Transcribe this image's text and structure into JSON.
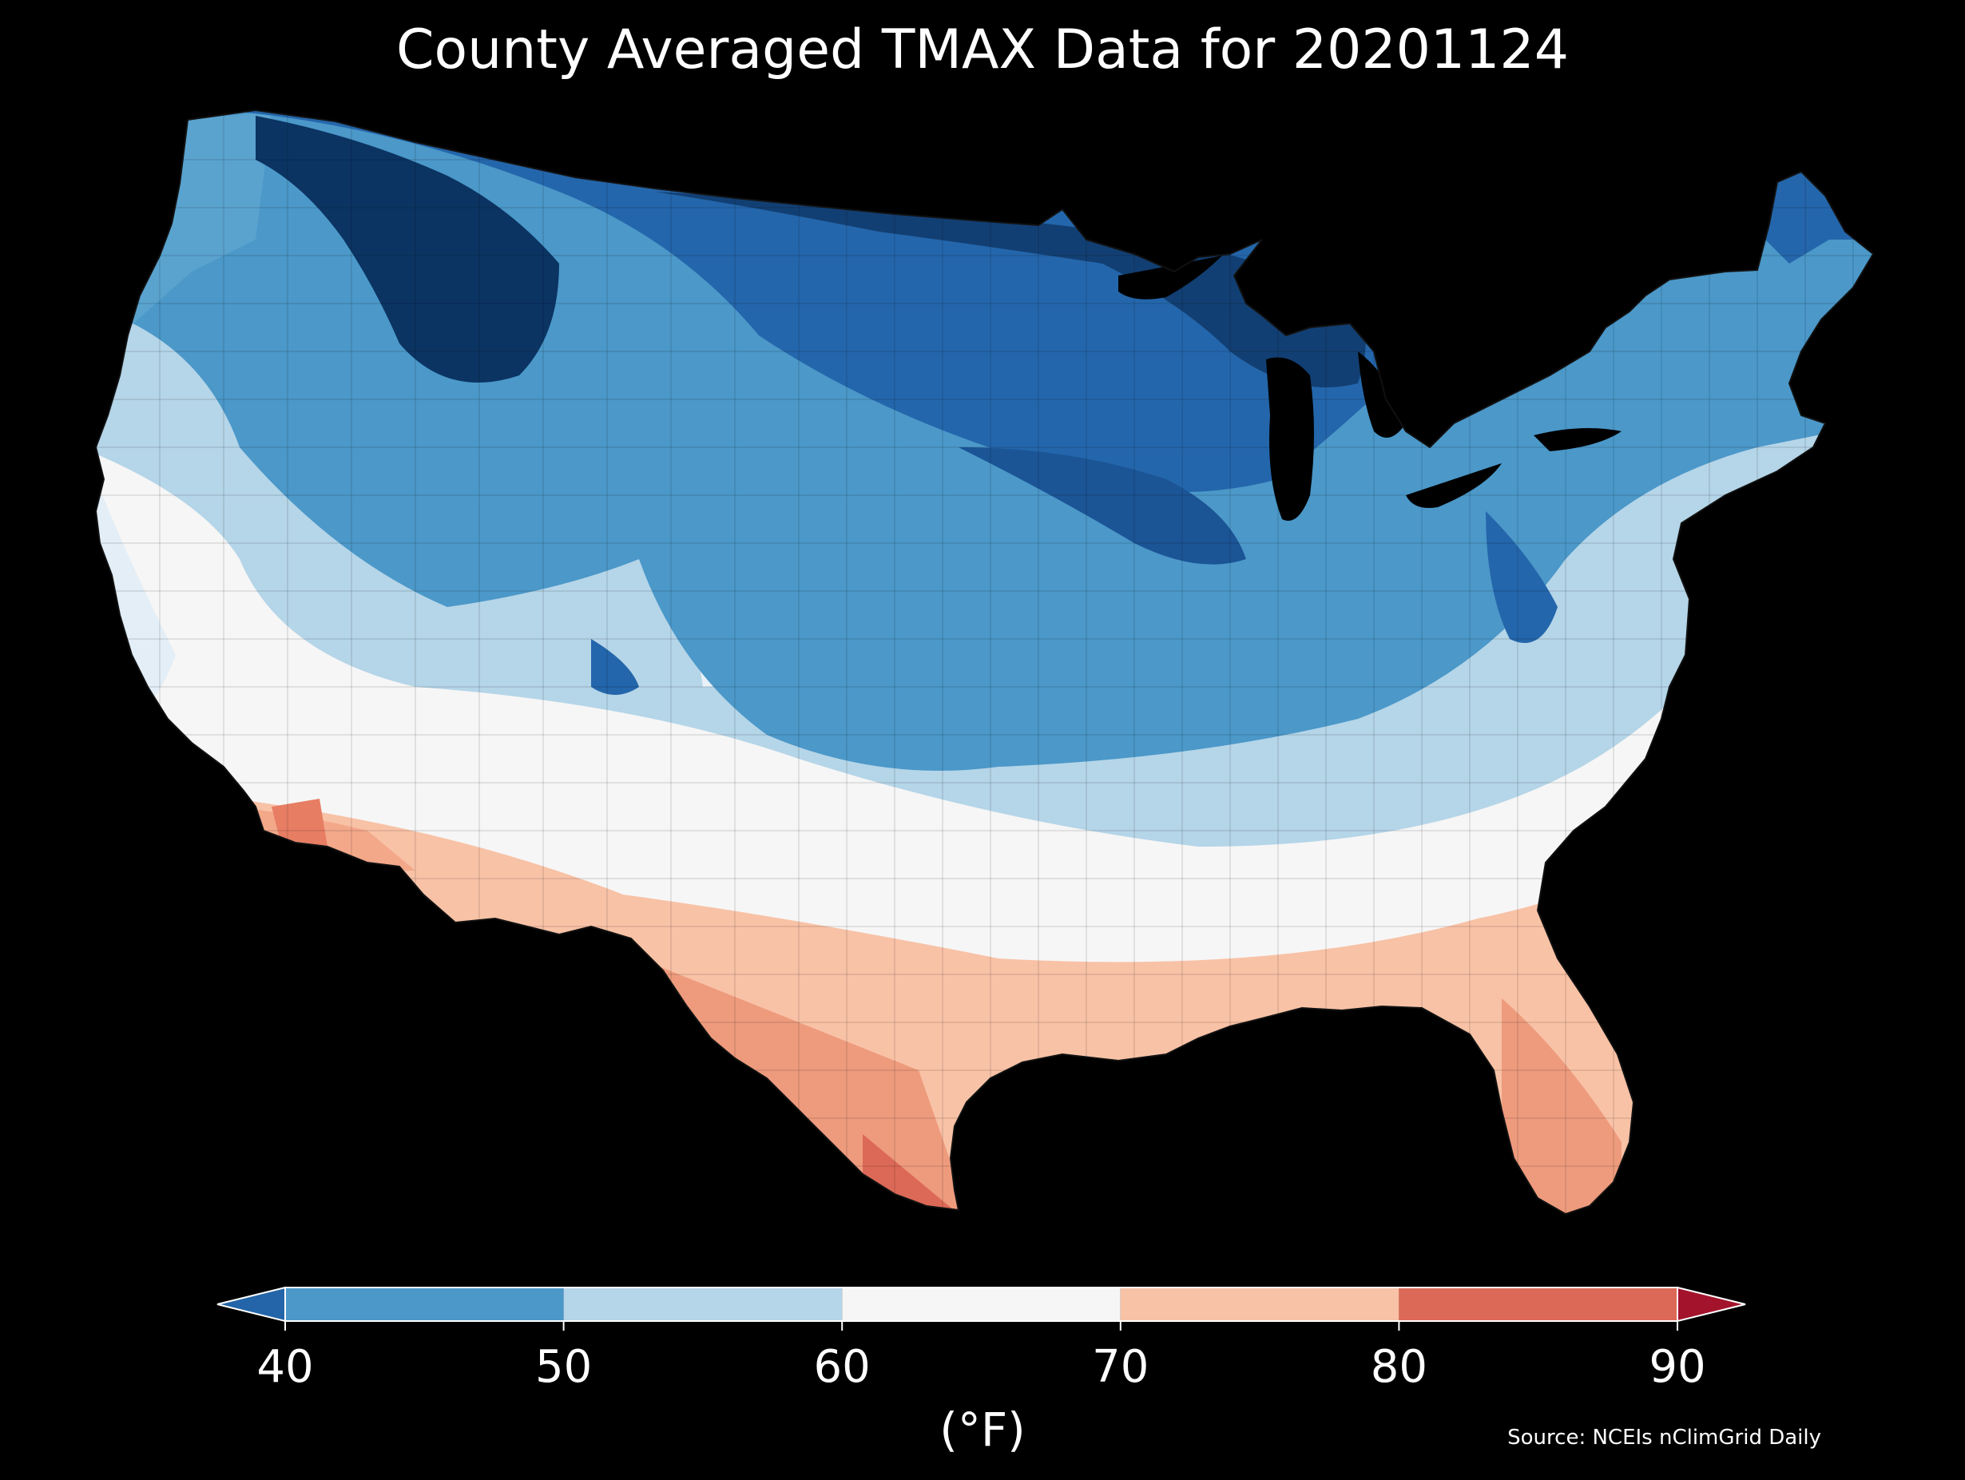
{
  "title": "County Averaged TMAX Data for 20201124",
  "source": "Source: NCEIs nClimGrid Daily",
  "colorbar": {
    "label": "(°F)",
    "ticks": [
      "40",
      "50",
      "60",
      "70",
      "80",
      "90"
    ],
    "min": 40,
    "max": 90,
    "extend": "both",
    "bins": [
      {
        "from": 40,
        "to": 50,
        "color": "#4b98c9"
      },
      {
        "from": 50,
        "to": 60,
        "color": "#b5d5e8"
      },
      {
        "from": 60,
        "to": 70,
        "color": "#f6f6f6"
      },
      {
        "from": 70,
        "to": 80,
        "color": "#f8c2a6"
      },
      {
        "from": 80,
        "to": 90,
        "color": "#dc6957"
      }
    ],
    "under_color": "#2365a8",
    "over_color": "#a3142c"
  },
  "map": {
    "region": "Contiguous United States",
    "units": "°F",
    "palette": {
      "very_cold": "#0b3463",
      "cold": "#2466ab",
      "cool": "#4b98c9",
      "mild": "#b5d5e8",
      "neutral": "#f6f6f6",
      "warm": "#f8c2a6",
      "hot": "#dc6957",
      "land_edge": "#000000",
      "water": "#000000"
    }
  }
}
